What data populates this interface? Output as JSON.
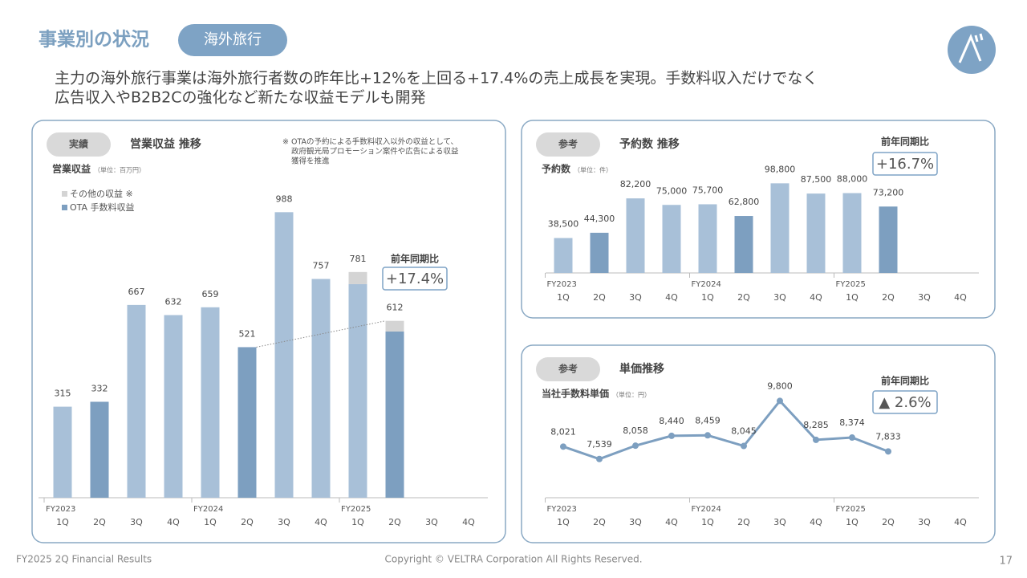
{
  "header": {
    "title": "事業別の状況",
    "tag": "海外旅行",
    "subtitle": [
      "主力の海外旅行事業は海外旅行者数の昨年比+12%を上回る+17.4%の売上成長を実現。手数料収入だけでなく",
      "広告収入やB2B2Cの強化など新たな収益モデルも開発"
    ]
  },
  "footer": {
    "left": "FY2025 2Q Financial Results",
    "center": "Copyright © VELTRA Corporation All Rights Reserved.",
    "page": "17"
  },
  "chart_data": [
    {
      "type": "bar",
      "stacked": true,
      "badge": "実績",
      "title": "営業収益 推移",
      "y_label": "営業収益",
      "unit": "（単位：百万円）",
      "note": [
        "※ OTAの予約による手数料収入以外の収益として、",
        "政府観光局プロモーション案件や広告による収益",
        "獲得を推進"
      ],
      "groups": [
        "FY2023",
        "FY2024",
        "FY2025"
      ],
      "categories": [
        "1Q",
        "2Q",
        "3Q",
        "4Q",
        "1Q",
        "2Q",
        "3Q",
        "4Q",
        "1Q",
        "2Q",
        "3Q",
        "4Q"
      ],
      "series": [
        {
          "name": "OTA 手数料収益",
          "color": "#7d9fc0",
          "values": [
            315,
            332,
            667,
            632,
            659,
            521,
            988,
            757,
            739,
            575,
            null,
            null
          ],
          "colors": [
            "#a8c0d8",
            "#7d9fc0",
            "#a8c0d8",
            "#a8c0d8",
            "#a8c0d8",
            "#7d9fc0",
            "#a8c0d8",
            "#a8c0d8",
            "#a8c0d8",
            "#7d9fc0",
            "#a8c0d8",
            "#a8c0d8"
          ]
        },
        {
          "name": "その他の収益 ※",
          "color": "#d4d4d4",
          "values": [
            null,
            null,
            null,
            null,
            null,
            null,
            null,
            null,
            42,
            37,
            null,
            null
          ]
        }
      ],
      "totals": [
        315,
        332,
        667,
        632,
        659,
        521,
        988,
        757,
        781,
        612,
        null,
        null
      ],
      "ylim": [
        0,
        1000
      ],
      "yoy_label": "前年同期比",
      "yoy": "+17.4%"
    },
    {
      "type": "bar",
      "badge": "参考",
      "title": "予約数 推移",
      "y_label": "予約数",
      "unit": "（単位：件）",
      "groups": [
        "FY2023",
        "FY2024",
        "FY2025"
      ],
      "categories": [
        "1Q",
        "2Q",
        "3Q",
        "4Q",
        "1Q",
        "2Q",
        "3Q",
        "4Q",
        "1Q",
        "2Q",
        "3Q",
        "4Q"
      ],
      "values": [
        38500,
        44300,
        82200,
        75000,
        75700,
        62800,
        98800,
        87500,
        88000,
        73200,
        null,
        null
      ],
      "value_labels": [
        "38,500",
        "44,300",
        "82,200",
        "75,000",
        "75,700",
        "62,800",
        "98,800",
        "87,500",
        "88,000",
        "73,200",
        null,
        null
      ],
      "colors": [
        "#a8c0d8",
        "#7d9fc0",
        "#a8c0d8",
        "#a8c0d8",
        "#a8c0d8",
        "#7d9fc0",
        "#a8c0d8",
        "#a8c0d8",
        "#a8c0d8",
        "#7d9fc0",
        "#a8c0d8",
        "#a8c0d8"
      ],
      "ylim": [
        0,
        100000
      ],
      "yoy_label": "前年同期比",
      "yoy": "+16.7%"
    },
    {
      "type": "line",
      "badge": "参考",
      "title": "単価推移",
      "y_label": "当社手数料単価",
      "unit": "（単位：円）",
      "groups": [
        "FY2023",
        "FY2024",
        "FY2025"
      ],
      "categories": [
        "1Q",
        "2Q",
        "3Q",
        "4Q",
        "1Q",
        "2Q",
        "3Q",
        "4Q",
        "1Q",
        "2Q",
        "3Q",
        "4Q"
      ],
      "values": [
        8021,
        7539,
        8058,
        8440,
        8459,
        8045,
        9800,
        8285,
        8374,
        7833,
        null,
        null
      ],
      "value_labels": [
        "8,021",
        "7,539",
        "8,058",
        "8,440",
        "8,459",
        "8,045",
        "9,800",
        "8,285",
        "8,374",
        "7,833",
        null,
        null
      ],
      "color": "#7d9fc0",
      "ylim": [
        7000,
        10000
      ],
      "yoy_label": "前年同期比",
      "yoy": "▲ 2.6%"
    }
  ]
}
